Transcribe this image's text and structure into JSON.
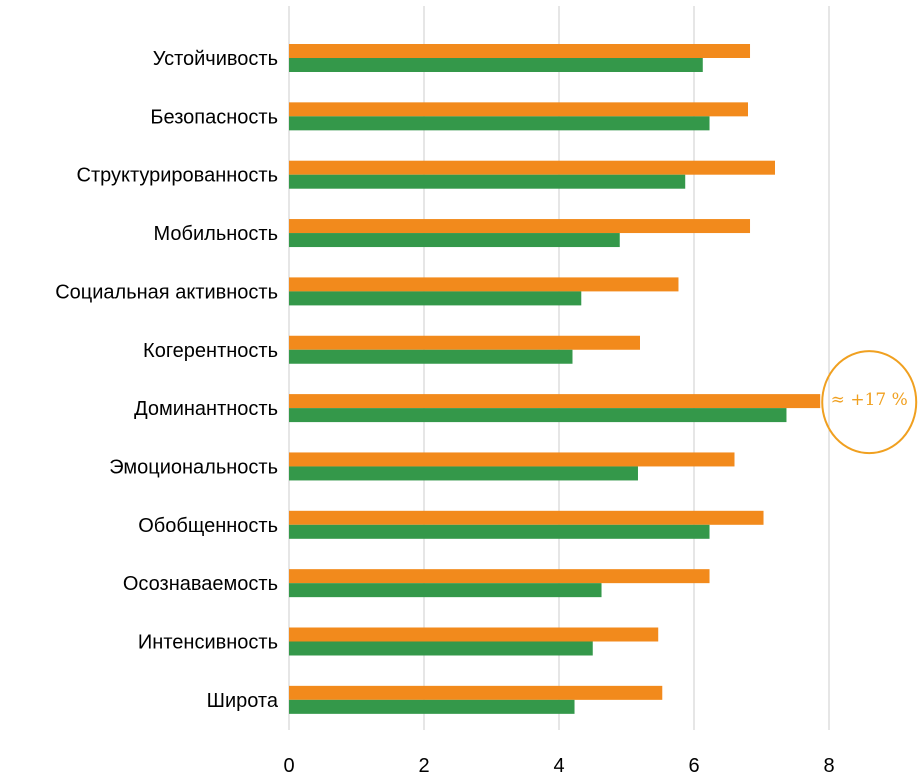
{
  "chart_data": {
    "type": "bar",
    "orientation": "horizontal",
    "categories": [
      "Устойчивость",
      "Безопасность",
      "Структурированность",
      "Мобильность",
      "Социальная активность",
      "Когерентность",
      "Доминантность",
      "Эмоциональность",
      "Обобщенность",
      "Осознаваемость",
      "Интенсивность",
      "Широта"
    ],
    "series": [
      {
        "color": "#F28A1C",
        "values": [
          6.83,
          6.8,
          7.2,
          6.83,
          5.77,
          5.2,
          7.87,
          6.6,
          7.03,
          6.23,
          5.47,
          5.53
        ]
      },
      {
        "color": "#34984A",
        "values": [
          6.13,
          6.23,
          5.87,
          4.9,
          4.33,
          4.2,
          7.37,
          5.17,
          6.23,
          4.63,
          4.5,
          4.23
        ]
      }
    ],
    "xlim": [
      0,
      9
    ],
    "xticks": [
      "0",
      "2",
      "4",
      "6",
      "8"
    ],
    "grid": "vertical",
    "legend": "none",
    "annotation": {
      "text": "≈ +17 %",
      "category": "Доминантность",
      "color": "#F0A020"
    }
  }
}
